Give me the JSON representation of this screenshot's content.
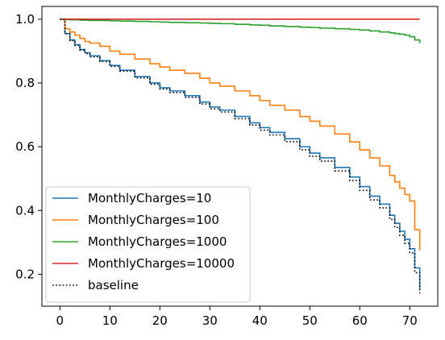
{
  "chart_data": {
    "type": "line",
    "title": "",
    "xlabel": "",
    "ylabel": "",
    "xlim": [
      -3.6,
      75.6
    ],
    "ylim": [
      0.1,
      1.04
    ],
    "xticks": [
      0,
      10,
      20,
      30,
      40,
      50,
      60,
      70
    ],
    "yticks": [
      0.2,
      0.4,
      0.6,
      0.8,
      1.0
    ],
    "xtick_labels": [
      "0",
      "10",
      "20",
      "30",
      "40",
      "50",
      "60",
      "70"
    ],
    "ytick_labels": [
      "0.2",
      "0.4",
      "0.6",
      "0.8",
      "1.0"
    ],
    "grid": false,
    "legend_position": "lower-left",
    "step": true,
    "x": [
      0,
      1,
      2,
      3,
      4,
      5,
      6,
      8,
      10,
      12,
      15,
      18,
      20,
      22,
      25,
      28,
      30,
      32,
      35,
      38,
      40,
      42,
      45,
      48,
      50,
      52,
      55,
      58,
      60,
      62,
      64,
      66,
      67,
      68,
      69,
      70,
      71,
      72
    ],
    "series": [
      {
        "name": "MonthlyCharges=10",
        "color": "#1f77b4",
        "style": "solid",
        "values": [
          1.0,
          0.955,
          0.935,
          0.92,
          0.905,
          0.895,
          0.885,
          0.87,
          0.855,
          0.84,
          0.82,
          0.8,
          0.785,
          0.775,
          0.76,
          0.74,
          0.725,
          0.715,
          0.695,
          0.675,
          0.66,
          0.645,
          0.625,
          0.6,
          0.58,
          0.565,
          0.535,
          0.505,
          0.475,
          0.445,
          0.42,
          0.385,
          0.36,
          0.335,
          0.31,
          0.28,
          0.22,
          0.15
        ]
      },
      {
        "name": "MonthlyCharges=100",
        "color": "#ff7f0e",
        "style": "solid",
        "values": [
          1.0,
          0.97,
          0.96,
          0.95,
          0.94,
          0.93,
          0.925,
          0.915,
          0.9,
          0.89,
          0.875,
          0.86,
          0.85,
          0.84,
          0.83,
          0.815,
          0.8,
          0.79,
          0.775,
          0.76,
          0.745,
          0.73,
          0.715,
          0.695,
          0.68,
          0.665,
          0.64,
          0.615,
          0.59,
          0.565,
          0.54,
          0.51,
          0.49,
          0.47,
          0.45,
          0.43,
          0.34,
          0.275
        ]
      },
      {
        "name": "MonthlyCharges=1000",
        "color": "#2ca02c",
        "style": "solid",
        "values": [
          1.0,
          0.999,
          0.998,
          0.998,
          0.997,
          0.997,
          0.996,
          0.996,
          0.995,
          0.994,
          0.993,
          0.992,
          0.991,
          0.99,
          0.989,
          0.988,
          0.987,
          0.986,
          0.984,
          0.982,
          0.981,
          0.979,
          0.977,
          0.975,
          0.974,
          0.972,
          0.97,
          0.968,
          0.966,
          0.963,
          0.96,
          0.957,
          0.955,
          0.953,
          0.95,
          0.945,
          0.935,
          0.925
        ]
      },
      {
        "name": "MonthlyCharges=10000",
        "color": "#d62728",
        "style": "solid",
        "values": [
          1.0,
          1.0,
          1.0,
          1.0,
          1.0,
          1.0,
          1.0,
          1.0,
          1.0,
          1.0,
          1.0,
          1.0,
          1.0,
          1.0,
          1.0,
          1.0,
          1.0,
          1.0,
          1.0,
          1.0,
          1.0,
          1.0,
          1.0,
          1.0,
          1.0,
          1.0,
          1.0,
          1.0,
          1.0,
          1.0,
          1.0,
          1.0,
          1.0,
          1.0,
          1.0,
          1.0,
          1.0,
          1.0
        ]
      },
      {
        "name": "baseline",
        "color": "#000000",
        "style": "dotted",
        "values": [
          1.0,
          0.955,
          0.933,
          0.918,
          0.903,
          0.892,
          0.882,
          0.867,
          0.852,
          0.837,
          0.816,
          0.796,
          0.781,
          0.77,
          0.755,
          0.734,
          0.719,
          0.709,
          0.688,
          0.668,
          0.652,
          0.637,
          0.616,
          0.59,
          0.57,
          0.555,
          0.524,
          0.494,
          0.463,
          0.433,
          0.408,
          0.372,
          0.347,
          0.322,
          0.297,
          0.267,
          0.205,
          0.14
        ]
      }
    ]
  }
}
